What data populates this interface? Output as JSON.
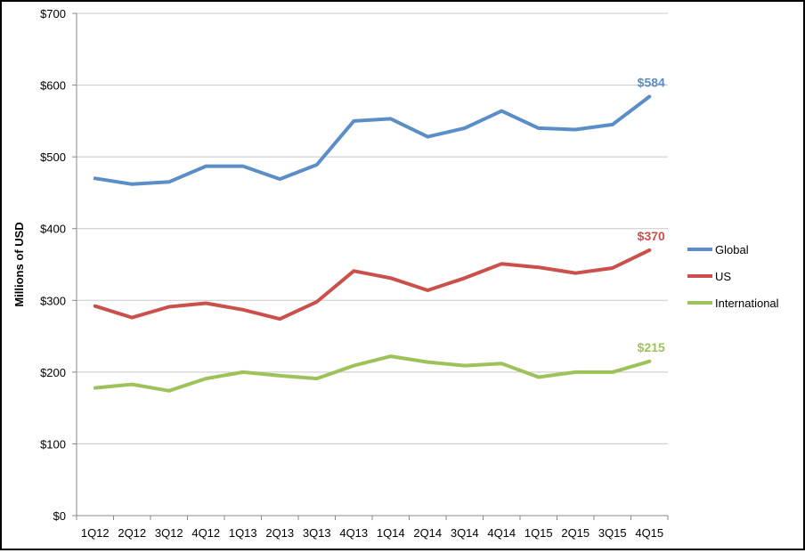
{
  "chart_data": {
    "type": "line",
    "title": "",
    "xlabel": "",
    "ylabel": "Millions of USD",
    "ylim": [
      0,
      700
    ],
    "yticks": [
      0,
      100,
      200,
      300,
      400,
      500,
      600,
      700
    ],
    "ytick_labels": [
      "$0",
      "$100",
      "$200",
      "$300",
      "$400",
      "$500",
      "$600",
      "$700"
    ],
    "grid": true,
    "legend_position": "right",
    "categories": [
      "1Q12",
      "2Q12",
      "3Q12",
      "4Q12",
      "1Q13",
      "2Q13",
      "3Q13",
      "4Q13",
      "1Q14",
      "2Q14",
      "3Q14",
      "4Q14",
      "1Q15",
      "2Q15",
      "3Q15",
      "4Q15"
    ],
    "series": [
      {
        "name": "Global",
        "color": "#5b8ec7",
        "values": [
          470,
          462,
          465,
          487,
          487,
          469,
          489,
          550,
          553,
          528,
          540,
          564,
          540,
          538,
          545,
          584
        ],
        "end_label": "$584"
      },
      {
        "name": "US",
        "color": "#cb4f4b",
        "values": [
          292,
          276,
          291,
          296,
          287,
          274,
          298,
          341,
          331,
          314,
          331,
          351,
          346,
          338,
          345,
          370
        ],
        "end_label": "$370"
      },
      {
        "name": "International",
        "color": "#9ec25a",
        "values": [
          178,
          183,
          174,
          191,
          200,
          195,
          191,
          209,
          222,
          214,
          209,
          212,
          193,
          200,
          200,
          215
        ],
        "end_label": "$215"
      }
    ]
  }
}
